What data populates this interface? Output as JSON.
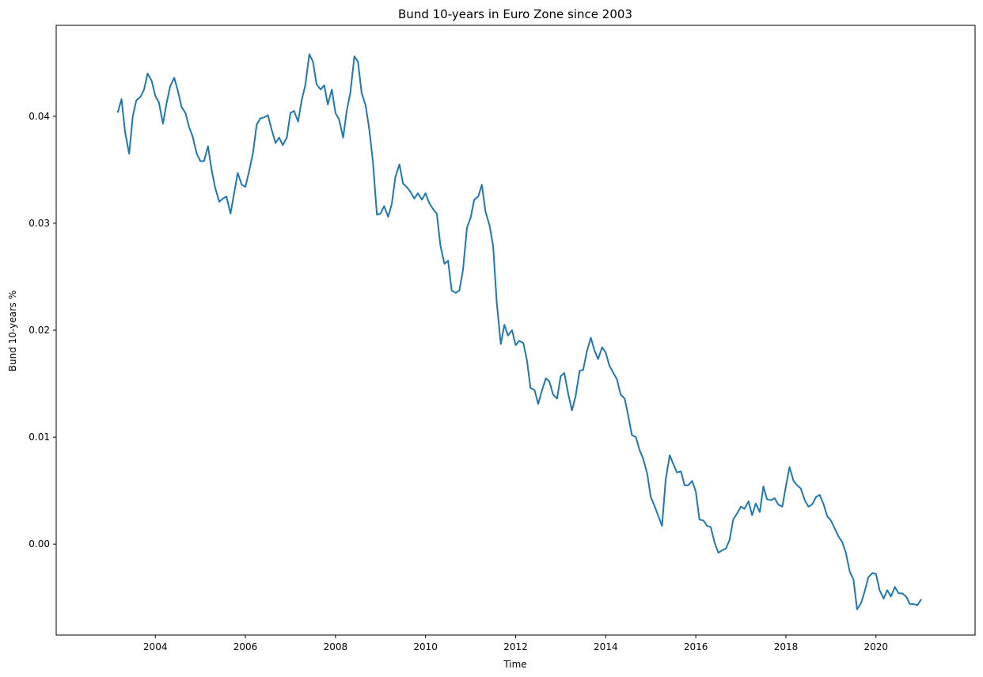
{
  "chart_data": {
    "type": "line",
    "title": "Bund 10-years in Euro Zone since 2003",
    "xlabel": "Time",
    "ylabel": "Bund 10-years %",
    "xlim": [
      2001.8,
      2022.2
    ],
    "ylim": [
      -0.0085,
      0.0485
    ],
    "grid": false,
    "legend": "none",
    "line_color": "#1f77b4",
    "x_ticks": [
      2004,
      2006,
      2008,
      2010,
      2012,
      2014,
      2016,
      2018,
      2020
    ],
    "x_tick_labels": [
      "2004",
      "2006",
      "2008",
      "2010",
      "2012",
      "2014",
      "2016",
      "2018",
      "2020"
    ],
    "y_ticks": [
      0.0,
      0.01,
      0.02,
      0.03,
      0.04
    ],
    "y_tick_labels": [
      "0.00",
      "0.01",
      "0.02",
      "0.03",
      "0.04"
    ],
    "series": [
      {
        "x": [
          2003.17,
          2003.25,
          2003.33,
          2003.42,
          2003.5,
          2003.58,
          2003.67,
          2003.75,
          2003.83,
          2003.92,
          2004.0,
          2004.08,
          2004.17,
          2004.25,
          2004.33,
          2004.42,
          2004.5,
          2004.58,
          2004.67,
          2004.75,
          2004.83,
          2004.92,
          2005.0,
          2005.08,
          2005.17,
          2005.25,
          2005.33,
          2005.42,
          2005.5,
          2005.58,
          2005.67,
          2005.75,
          2005.83,
          2005.92,
          2006.0,
          2006.08,
          2006.17,
          2006.25,
          2006.33,
          2006.42,
          2006.5,
          2006.58,
          2006.67,
          2006.75,
          2006.83,
          2006.92,
          2007.0,
          2007.08,
          2007.17,
          2007.25,
          2007.33,
          2007.42,
          2007.5,
          2007.58,
          2007.67,
          2007.75,
          2007.83,
          2007.92,
          2008.0,
          2008.08,
          2008.17,
          2008.25,
          2008.33,
          2008.42,
          2008.5,
          2008.58,
          2008.67,
          2008.75,
          2008.83,
          2008.92,
          2009.0,
          2009.08,
          2009.17,
          2009.25,
          2009.33,
          2009.42,
          2009.5,
          2009.58,
          2009.67,
          2009.75,
          2009.83,
          2009.92,
          2010.0,
          2010.08,
          2010.17,
          2010.25,
          2010.33,
          2010.42,
          2010.5,
          2010.58,
          2010.67,
          2010.75,
          2010.83,
          2010.92,
          2011.0,
          2011.08,
          2011.17,
          2011.25,
          2011.33,
          2011.42,
          2011.5,
          2011.58,
          2011.67,
          2011.75,
          2011.83,
          2011.92,
          2012.0,
          2012.08,
          2012.17,
          2012.25,
          2012.33,
          2012.42,
          2012.5,
          2012.58,
          2012.67,
          2012.75,
          2012.83,
          2012.92,
          2013.0,
          2013.08,
          2013.17,
          2013.25,
          2013.33,
          2013.42,
          2013.5,
          2013.58,
          2013.67,
          2013.75,
          2013.83,
          2013.92,
          2014.0,
          2014.08,
          2014.17,
          2014.25,
          2014.33,
          2014.42,
          2014.5,
          2014.58,
          2014.67,
          2014.75,
          2014.83,
          2014.92,
          2015.0,
          2015.08,
          2015.17,
          2015.25,
          2015.33,
          2015.42,
          2015.5,
          2015.58,
          2015.67,
          2015.75,
          2015.83,
          2015.92,
          2016.0,
          2016.08,
          2016.17,
          2016.25,
          2016.33,
          2016.42,
          2016.5,
          2016.58,
          2016.67,
          2016.75,
          2016.83,
          2016.92,
          2017.0,
          2017.08,
          2017.17,
          2017.25,
          2017.33,
          2017.42,
          2017.5,
          2017.58,
          2017.67,
          2017.75,
          2017.83,
          2017.92,
          2018.0,
          2018.08,
          2018.17,
          2018.25,
          2018.33,
          2018.42,
          2018.5,
          2018.58,
          2018.67,
          2018.75,
          2018.83,
          2018.92,
          2019.0,
          2019.08,
          2019.17,
          2019.25,
          2019.33,
          2019.42,
          2019.5,
          2019.58,
          2019.67,
          2019.75,
          2019.83,
          2019.92,
          2020.0,
          2020.08,
          2020.17,
          2020.25,
          2020.33,
          2020.42,
          2020.5,
          2020.58,
          2020.67,
          2020.75,
          2020.83,
          2020.92,
          2021.0
        ],
        "values": [
          0.0404,
          0.0416,
          0.0385,
          0.0365,
          0.04,
          0.0415,
          0.0418,
          0.0425,
          0.044,
          0.0433,
          0.0419,
          0.0413,
          0.0393,
          0.0412,
          0.0428,
          0.0436,
          0.0424,
          0.0409,
          0.0403,
          0.039,
          0.0381,
          0.0365,
          0.0358,
          0.0358,
          0.0372,
          0.035,
          0.0333,
          0.032,
          0.0323,
          0.0325,
          0.0309,
          0.0328,
          0.0347,
          0.0336,
          0.0334,
          0.0348,
          0.0366,
          0.0392,
          0.0398,
          0.0399,
          0.0401,
          0.0388,
          0.0375,
          0.038,
          0.0373,
          0.038,
          0.0403,
          0.0405,
          0.0395,
          0.0415,
          0.0429,
          0.0458,
          0.0451,
          0.043,
          0.0425,
          0.0429,
          0.0411,
          0.0425,
          0.0403,
          0.0397,
          0.038,
          0.0405,
          0.0422,
          0.0456,
          0.0451,
          0.0422,
          0.041,
          0.0388,
          0.0358,
          0.0308,
          0.0309,
          0.0316,
          0.0306,
          0.0318,
          0.0343,
          0.0355,
          0.0337,
          0.0334,
          0.0329,
          0.0323,
          0.0328,
          0.0322,
          0.0328,
          0.0319,
          0.0313,
          0.0309,
          0.0279,
          0.0262,
          0.0265,
          0.0237,
          0.0235,
          0.0237,
          0.0256,
          0.0296,
          0.0305,
          0.0322,
          0.0325,
          0.0336,
          0.0311,
          0.0298,
          0.0279,
          0.0226,
          0.0187,
          0.0205,
          0.0195,
          0.02,
          0.0186,
          0.019,
          0.0188,
          0.0172,
          0.0146,
          0.0144,
          0.0131,
          0.0143,
          0.0155,
          0.0152,
          0.014,
          0.0136,
          0.0157,
          0.016,
          0.014,
          0.0125,
          0.0138,
          0.0162,
          0.0163,
          0.018,
          0.0193,
          0.0181,
          0.0173,
          0.0184,
          0.0179,
          0.0167,
          0.016,
          0.0154,
          0.014,
          0.0136,
          0.012,
          0.0102,
          0.01,
          0.0088,
          0.008,
          0.0066,
          0.0044,
          0.0036,
          0.0026,
          0.0017,
          0.006,
          0.0083,
          0.0075,
          0.0067,
          0.0068,
          0.0055,
          0.0055,
          0.0059,
          0.0049,
          0.0023,
          0.0022,
          0.0017,
          0.0016,
          0.0001,
          -0.0008,
          -0.0006,
          -0.0004,
          0.0004,
          0.0023,
          0.0029,
          0.0035,
          0.0033,
          0.004,
          0.0027,
          0.0038,
          0.003,
          0.0054,
          0.0042,
          0.0041,
          0.0043,
          0.0037,
          0.0035,
          0.0054,
          0.0072,
          0.0059,
          0.0055,
          0.0052,
          0.0041,
          0.0035,
          0.0037,
          0.0044,
          0.0046,
          0.0038,
          0.0026,
          0.0022,
          0.0015,
          0.0007,
          0.0002,
          -0.0008,
          -0.0026,
          -0.0033,
          -0.0061,
          -0.0055,
          -0.0044,
          -0.0031,
          -0.0027,
          -0.0028,
          -0.0043,
          -0.0051,
          -0.0043,
          -0.0049,
          -0.004,
          -0.0046,
          -0.0046,
          -0.0049,
          -0.0056,
          -0.0056,
          -0.0057,
          -0.0052
        ]
      }
    ]
  }
}
